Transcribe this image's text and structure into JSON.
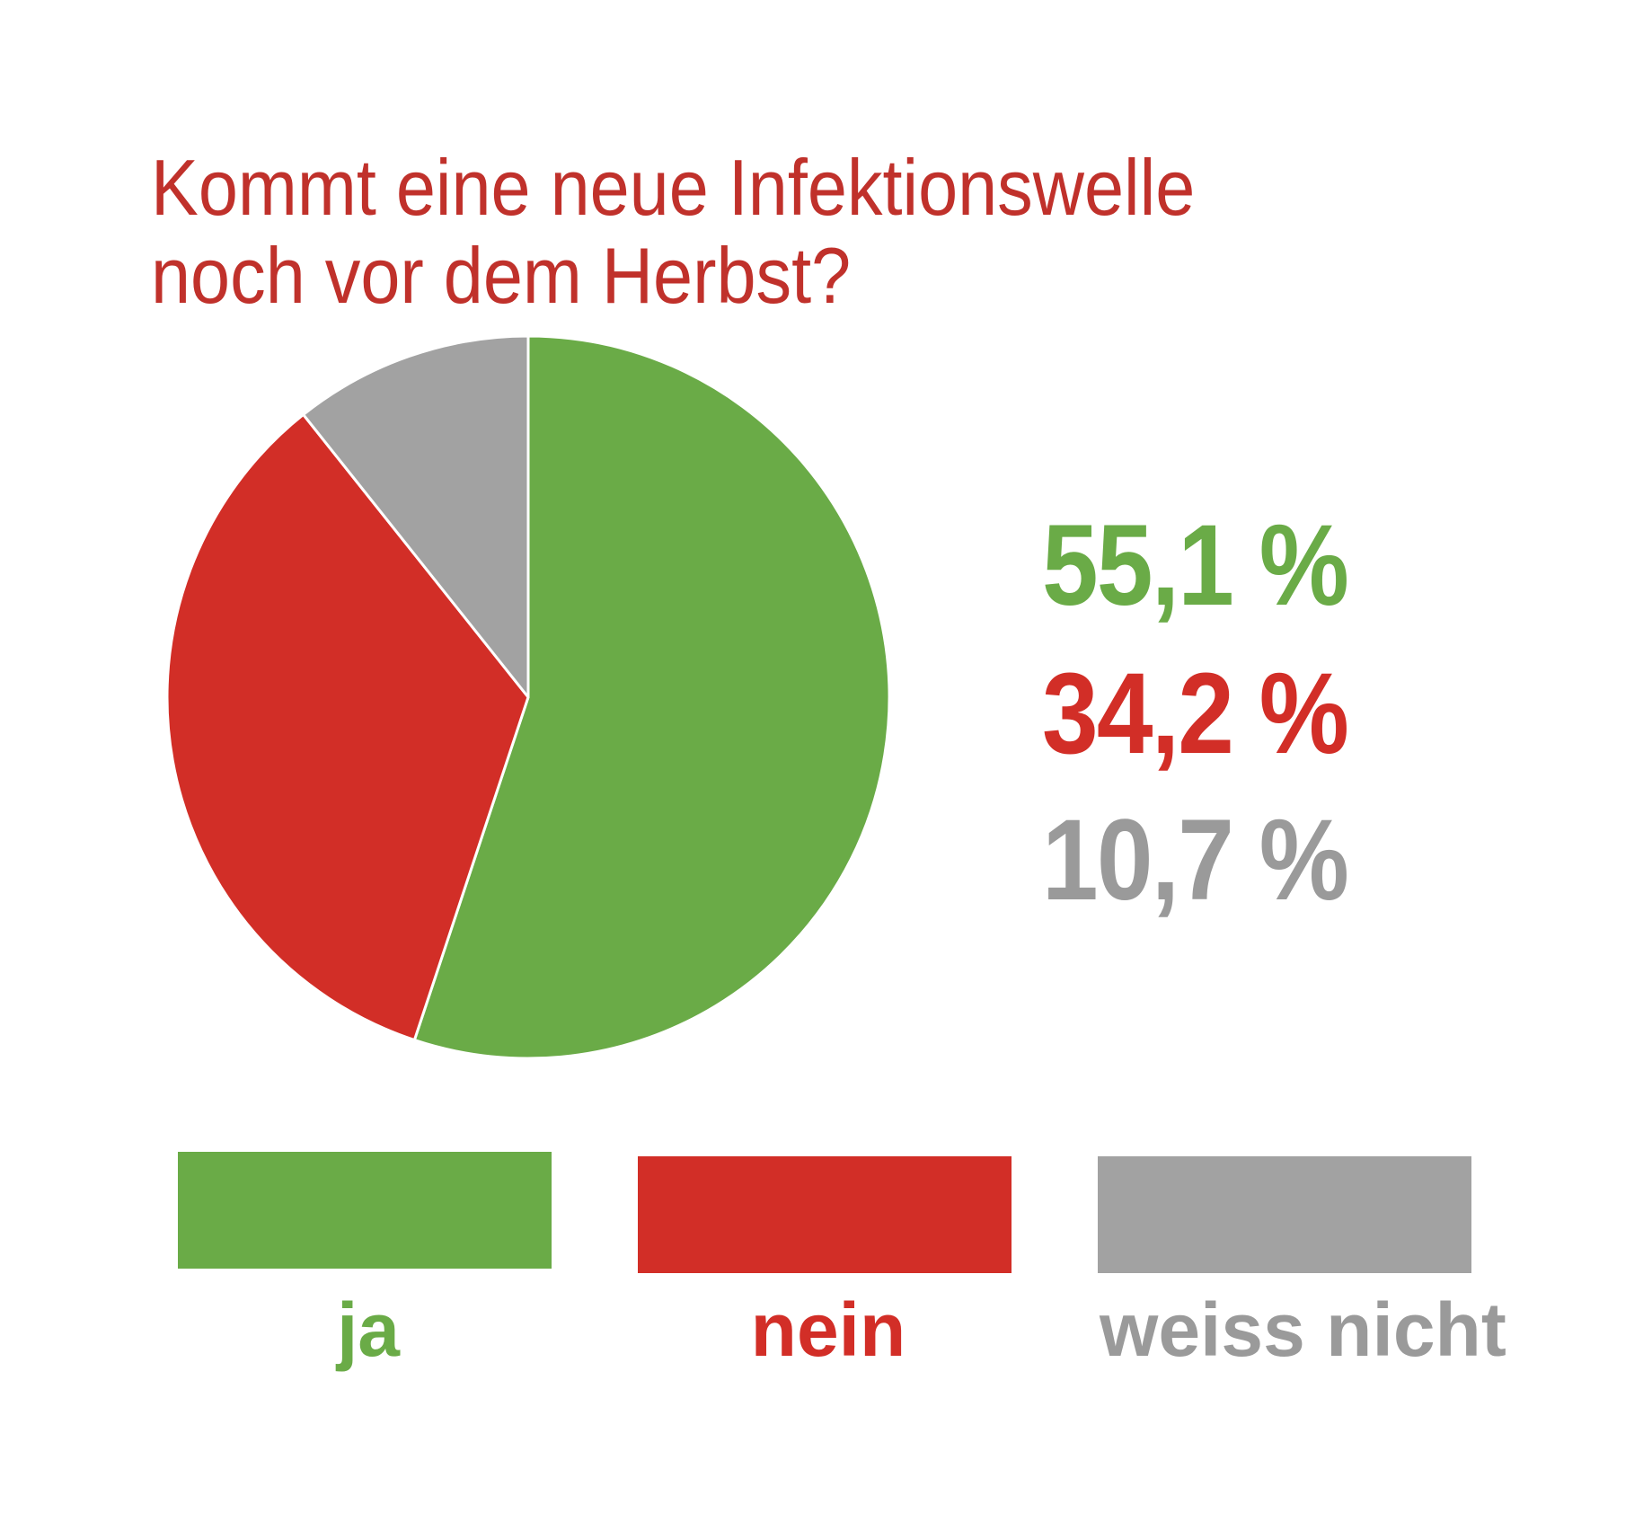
{
  "chart_data": {
    "type": "pie",
    "title_lines": [
      "Kommt eine neue Infektionswelle",
      "noch vor dem Herbst?"
    ],
    "categories": [
      "ja",
      "nein",
      "weiss nicht"
    ],
    "values": [
      55.1,
      34.2,
      10.7
    ],
    "value_labels": [
      "55,1 %",
      "34,2 %",
      "10,7 %"
    ],
    "start_angle": "12 o'clock, clockwise",
    "legend": "bottom",
    "colors": [
      "#6aab47",
      "#d22e27",
      "#a2a2a2"
    ],
    "label_colors": [
      "#6aab47",
      "#d22e27",
      "#9a9a9a"
    ],
    "title_color": "#c0312b"
  }
}
